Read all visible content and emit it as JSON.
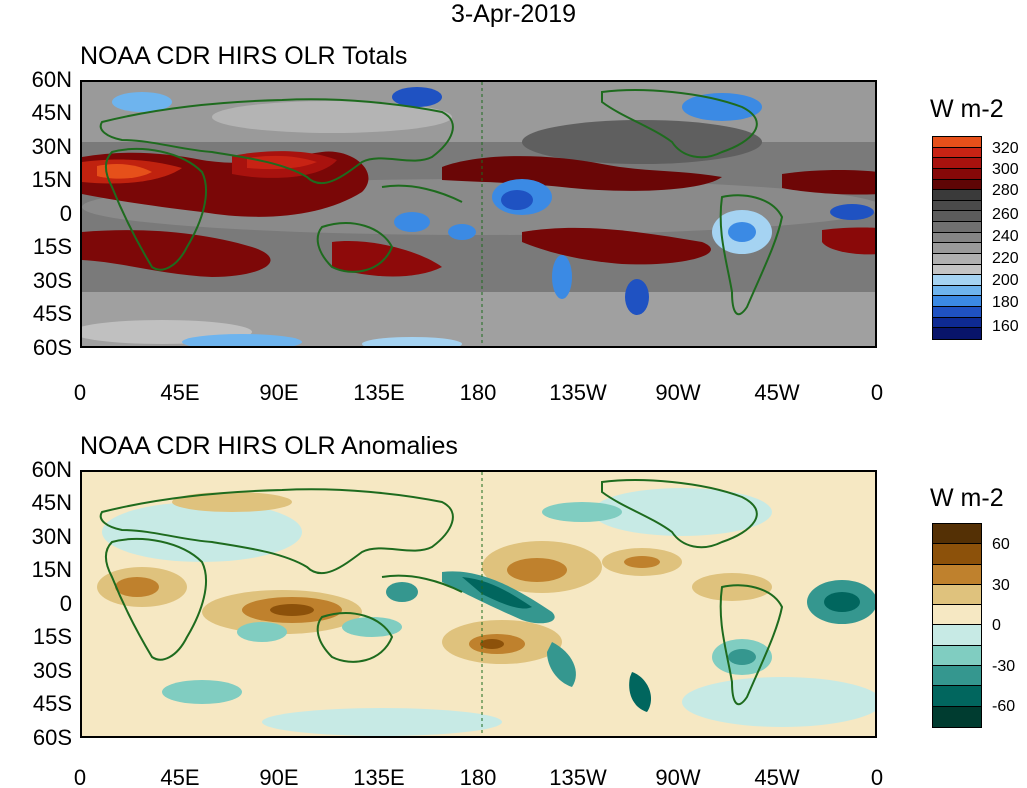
{
  "date_title": "3-Apr-2019",
  "panels": [
    {
      "title": "NOAA CDR HIRS OLR Totals",
      "units": "W m-2",
      "colorbar_labels": [
        "320",
        "300",
        "280",
        "260",
        "240",
        "220",
        "200",
        "180",
        "160"
      ],
      "colorbar_colors": [
        "#e6501a",
        "#c82314",
        "#a8120e",
        "#860808",
        "#5e0505",
        "#3a3a3a",
        "#4a4a4a",
        "#5c5c5c",
        "#707070",
        "#858585",
        "#9a9a9a",
        "#b0b0b0",
        "#c4c4c4",
        "#a5d3f2",
        "#6eb4ee",
        "#3b8ae4",
        "#1f52c2",
        "#0e2a92",
        "#08146a"
      ]
    },
    {
      "title": "NOAA CDR HIRS OLR Anomalies",
      "units": "W m-2",
      "colorbar_labels": [
        "60",
        "30",
        "0",
        "-30",
        "-60"
      ],
      "colorbar_colors": [
        "#543005",
        "#8c510a",
        "#bf812d",
        "#dfc27d",
        "#f6e8c3",
        "#c7eae5",
        "#80cdc1",
        "#35978f",
        "#01665e",
        "#003c30"
      ]
    }
  ],
  "y_tick_labels": [
    "60N",
    "45N",
    "30N",
    "15N",
    "0",
    "15S",
    "30S",
    "45S",
    "60S"
  ],
  "x_tick_labels": [
    "0",
    "45E",
    "90E",
    "135E",
    "180",
    "135W",
    "90W",
    "45W",
    "0"
  ],
  "colors": {
    "land_outline": "#1e6b1e",
    "frame": "#000000"
  }
}
